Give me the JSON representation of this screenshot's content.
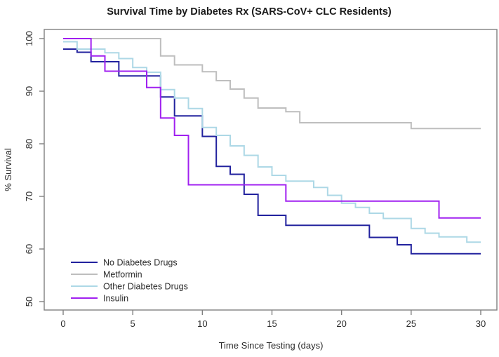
{
  "chart_data": {
    "type": "line",
    "variant": "kaplan-meier-step-survival",
    "title": "Survival Time by Diabetes Rx (SARS-CoV+ CLC Residents)",
    "xlabel": "Time Since Testing (days)",
    "ylabel": "% Survival",
    "xlim": [
      0,
      30
    ],
    "ylim": [
      50,
      100
    ],
    "xticks": [
      0,
      5,
      10,
      15,
      20,
      25,
      30
    ],
    "yticks": [
      50,
      60,
      70,
      80,
      90,
      100
    ],
    "grid": false,
    "legend_position": "bottom-left-inside",
    "series": [
      {
        "name": "No Diabetes Drugs",
        "color": "#22229E",
        "steps": [
          [
            0,
            98
          ],
          [
            1,
            97.4
          ],
          [
            2,
            95.6
          ],
          [
            4,
            92.9
          ],
          [
            7,
            88.9
          ],
          [
            8,
            85.3
          ],
          [
            10,
            81.4
          ],
          [
            11,
            75.7
          ],
          [
            12,
            74.2
          ],
          [
            13,
            70.4
          ],
          [
            14,
            66.4
          ],
          [
            16,
            64.5
          ],
          [
            22,
            62.2
          ],
          [
            24,
            60.8
          ],
          [
            25,
            59.1
          ],
          [
            30,
            59.1
          ]
        ]
      },
      {
        "name": "Metformin",
        "color": "#BEBEBE",
        "steps": [
          [
            0,
            100
          ],
          [
            7,
            96.7
          ],
          [
            8,
            95
          ],
          [
            10,
            93.7
          ],
          [
            11,
            92
          ],
          [
            12,
            90.4
          ],
          [
            13,
            88.7
          ],
          [
            14,
            86.8
          ],
          [
            16,
            86.1
          ],
          [
            17,
            84
          ],
          [
            25,
            82.9
          ],
          [
            30,
            82.9
          ]
        ]
      },
      {
        "name": "Other Diabetes Drugs",
        "color": "#ADD8E6",
        "steps": [
          [
            0,
            99.4
          ],
          [
            1,
            98
          ],
          [
            3,
            97.3
          ],
          [
            4,
            96.2
          ],
          [
            5,
            94.5
          ],
          [
            6,
            93.6
          ],
          [
            7,
            90.3
          ],
          [
            8,
            88.7
          ],
          [
            9,
            86.7
          ],
          [
            10,
            83.1
          ],
          [
            11,
            81.6
          ],
          [
            12,
            79.6
          ],
          [
            13,
            77.8
          ],
          [
            14,
            75.6
          ],
          [
            15,
            74
          ],
          [
            16,
            72.9
          ],
          [
            18,
            71.7
          ],
          [
            19,
            70.2
          ],
          [
            20,
            68.7
          ],
          [
            21,
            67.9
          ],
          [
            22,
            66.8
          ],
          [
            23,
            65.8
          ],
          [
            25,
            63.9
          ],
          [
            26,
            63
          ],
          [
            27,
            62.3
          ],
          [
            29,
            61.3
          ],
          [
            30,
            61.3
          ]
        ]
      },
      {
        "name": "Insulin",
        "color": "#A020F0",
        "steps": [
          [
            0,
            100
          ],
          [
            2,
            96.7
          ],
          [
            3,
            93.8
          ],
          [
            6,
            90.7
          ],
          [
            7,
            84.9
          ],
          [
            8,
            81.6
          ],
          [
            9,
            72.2
          ],
          [
            16,
            69.1
          ],
          [
            27,
            65.9
          ],
          [
            30,
            65.9
          ]
        ]
      }
    ]
  },
  "colors": {
    "axis": "#808080",
    "text": "#2b2b2b",
    "background": "#ffffff"
  }
}
